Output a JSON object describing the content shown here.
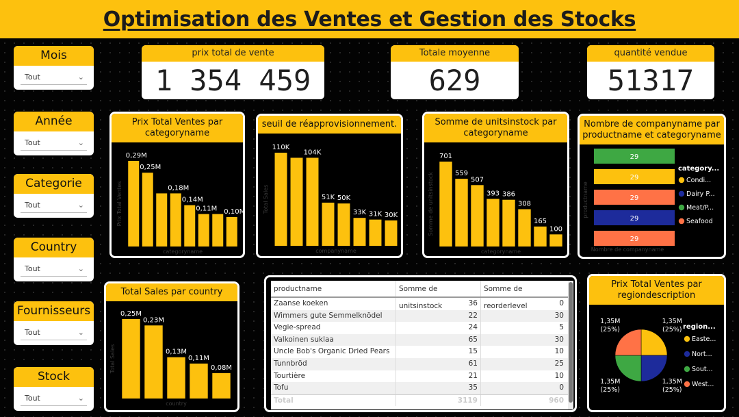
{
  "title": "Optimisation des Ventes et Gestion des Stocks",
  "slicers": [
    {
      "label": "Mois",
      "value": "Tout"
    },
    {
      "label": "Année",
      "value": "Tout"
    },
    {
      "label": "Categorie",
      "value": "Tout"
    },
    {
      "label": "Country",
      "value": "Tout"
    },
    {
      "label": "Fournisseurs",
      "value": "Tout"
    },
    {
      "label": "Stock",
      "value": "Tout"
    }
  ],
  "kpis": [
    {
      "label": "prix total de vente",
      "value": "1 354 459"
    },
    {
      "label": "Totale moyenne",
      "value": "629"
    },
    {
      "label": "quantité vendue",
      "value": "51317"
    }
  ],
  "colors": {
    "accent": "#FDC10E",
    "green": "#3EA843",
    "navy": "#1D2B9B",
    "orange": "#FF7246"
  },
  "chart_data": [
    {
      "type": "bar",
      "title": "Prix Total Ventes par categoryname",
      "xlabel": "categoryname",
      "ylabel": "Prix Total Ventes",
      "values": [
        0.29,
        0.25,
        0.18,
        0.18,
        0.14,
        0.11,
        0.11,
        0.1
      ],
      "labels": [
        "0,29M",
        "0,25M",
        "",
        "0,18M",
        "0,14M",
        "0,11M",
        "",
        "0,10M"
      ]
    },
    {
      "type": "bar",
      "title": "seuil de réapprovisionnement.",
      "xlabel": "companyname",
      "ylabel": "Total Sales",
      "values": [
        110,
        104,
        104,
        51,
        50,
        33,
        31,
        30
      ],
      "labels": [
        "110K",
        "",
        "104K",
        "51K",
        "50K",
        "33K",
        "31K",
        "30K"
      ]
    },
    {
      "type": "bar",
      "title": "Somme de unitsinstock par categoryname",
      "xlabel": "categoryname",
      "ylabel": "Somme de unitsinstock",
      "values": [
        701,
        559,
        507,
        393,
        386,
        308,
        165,
        100
      ],
      "labels": [
        "701",
        "559",
        "507",
        "393",
        "386",
        "308",
        "165",
        "100"
      ]
    },
    {
      "type": "bar",
      "title": "Nombre de companyname par productname et categoryname",
      "orientation": "horizontal",
      "xlabel": "Nombre de companyname",
      "ylabel": "productname",
      "values": [
        29,
        29,
        29,
        29,
        29
      ],
      "labels": [
        "29",
        "29",
        "29",
        "29",
        "29"
      ],
      "bar_colors": [
        "#3EA843",
        "#FDC10E",
        "#FF7246",
        "#1D2B9B",
        "#FF7246"
      ],
      "legend_title": "category...",
      "legend": [
        {
          "name": "Condi...",
          "color": "#FDC10E"
        },
        {
          "name": "Dairy P...",
          "color": "#1D2B9B"
        },
        {
          "name": "Meat/P...",
          "color": "#3EA843"
        },
        {
          "name": "Seafood",
          "color": "#FF7246"
        }
      ]
    },
    {
      "type": "bar",
      "title": "Total Sales par country",
      "xlabel": "country",
      "ylabel": "Total Sales",
      "values": [
        0.25,
        0.23,
        0.13,
        0.11,
        0.08
      ],
      "labels": [
        "0,25M",
        "0,23M",
        "0,13M",
        "0,11M",
        "0,08M"
      ]
    },
    {
      "type": "pie",
      "title": "Prix Total Ventes par regiondescription",
      "values": [
        1.35,
        1.35,
        1.35,
        1.35
      ],
      "slices": [
        {
          "name": "Easte...",
          "value": 1.35,
          "label": "1,35M",
          "pct": "(25%)",
          "color": "#FDC10E"
        },
        {
          "name": "Nort...",
          "value": 1.35,
          "label": "1,35M",
          "pct": "(25%)",
          "color": "#1D2B9B"
        },
        {
          "name": "Sout...",
          "value": 1.35,
          "label": "1,35M",
          "pct": "(25%)",
          "color": "#3EA843"
        },
        {
          "name": "West...",
          "value": 1.35,
          "label": "1,35M",
          "pct": "(25%)",
          "color": "#FF7246"
        }
      ],
      "legend_title": "region..."
    }
  ],
  "table": {
    "headers": [
      "productname",
      "Somme de unitsinstock",
      "Somme de reorderlevel"
    ],
    "rows": [
      [
        "Zaanse koeken",
        "36",
        "0"
      ],
      [
        "Wimmers gute Semmelknödel",
        "22",
        "30"
      ],
      [
        "Vegie-spread",
        "24",
        "5"
      ],
      [
        "Valkoinen suklaa",
        "65",
        "30"
      ],
      [
        "Uncle Bob's Organic Dried Pears",
        "15",
        "10"
      ],
      [
        "Tunnbröd",
        "61",
        "25"
      ],
      [
        "Tourtière",
        "21",
        "10"
      ],
      [
        "Tofu",
        "35",
        "0"
      ]
    ],
    "total": [
      "Total",
      "3119",
      "960"
    ]
  }
}
